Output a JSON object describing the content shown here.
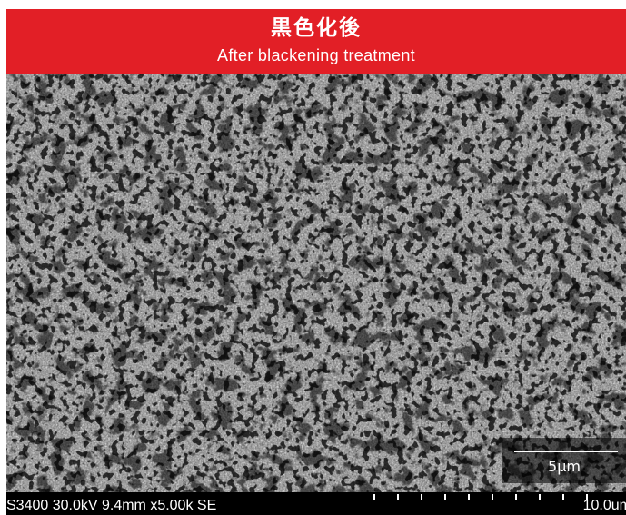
{
  "header": {
    "title": "黒色化後",
    "subtitle": "After blackening treatment",
    "background_color": "#e21f26"
  },
  "micrograph": {
    "scale_bar_label": "5μm",
    "info_bar": {
      "conditions": "S3400 30.0kV 9.4mm x5.00k SE",
      "scale": "10.0um"
    }
  }
}
